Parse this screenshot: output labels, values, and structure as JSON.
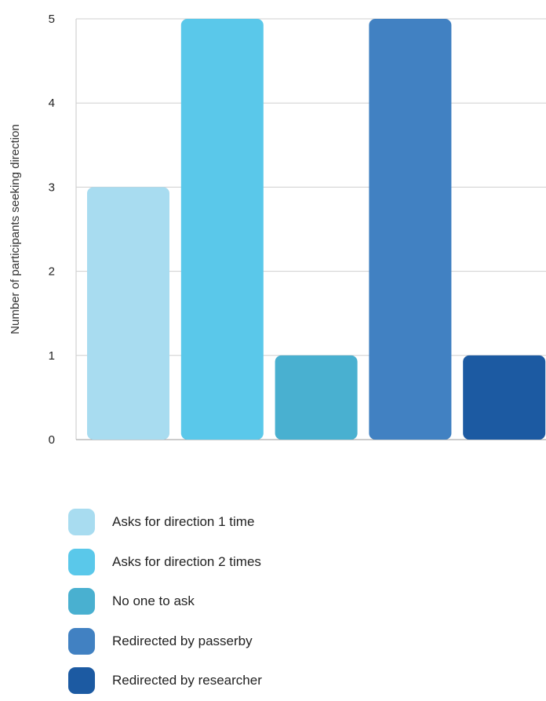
{
  "chart_data": {
    "type": "bar",
    "title": "",
    "xlabel": "",
    "ylabel": "Number of participants seeking direction",
    "ylim": [
      0,
      5
    ],
    "yticks": [
      0,
      1,
      2,
      3,
      4,
      5
    ],
    "grid": true,
    "legend_position": "bottom",
    "categories": [
      "Asks for direction 1 time",
      "Asks for direction 2 times",
      "No one to ask",
      "Redirected by passerby",
      "Redirected by researcher"
    ],
    "values": [
      3,
      5,
      1,
      5,
      1
    ],
    "colors": [
      "#a8dcf0",
      "#5ac8ea",
      "#49b0d0",
      "#4181c2",
      "#1c5aa2"
    ]
  }
}
